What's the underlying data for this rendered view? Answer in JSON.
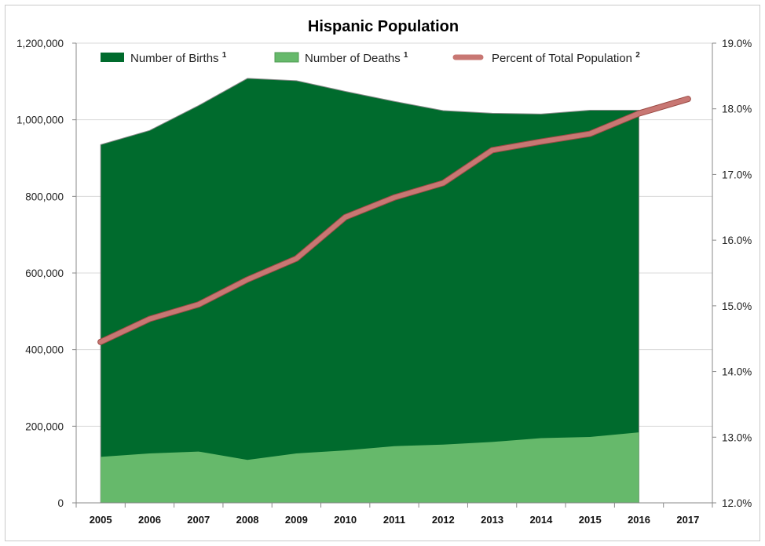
{
  "chart_data": {
    "type": "area",
    "title": "Hispanic Population",
    "categories": [
      "2005",
      "2006",
      "2007",
      "2008",
      "2009",
      "2010",
      "2011",
      "2012",
      "2013",
      "2014",
      "2015",
      "2016",
      "2017"
    ],
    "series": [
      {
        "name": "Number of Births",
        "superscript": "1",
        "type": "area",
        "axis": "left",
        "color": "#006b2d",
        "values": [
          935000,
          972000,
          1037000,
          1108000,
          1102000,
          1074000,
          1048000,
          1024000,
          1017000,
          1015000,
          1025000,
          1025000,
          null
        ]
      },
      {
        "name": "Number of Deaths",
        "superscript": "1",
        "type": "area",
        "axis": "left",
        "color": "#66b96b",
        "values": [
          120000,
          129000,
          134000,
          112000,
          129000,
          137000,
          148000,
          152000,
          159000,
          169000,
          172000,
          184000,
          null
        ]
      },
      {
        "name": "Percent of Total Population",
        "superscript": "2",
        "type": "line",
        "axis": "right",
        "color": "#c87773",
        "values": [
          14.45,
          14.8,
          15.02,
          15.4,
          15.72,
          16.35,
          16.65,
          16.87,
          17.37,
          17.5,
          17.62,
          17.93,
          18.15
        ]
      }
    ],
    "yleft": {
      "ylim": [
        0,
        1200000
      ],
      "ticks": [
        "0",
        "200,000",
        "400,000",
        "600,000",
        "800,000",
        "1,000,000",
        "1,200,000"
      ]
    },
    "yright": {
      "ylim": [
        12.0,
        19.0
      ],
      "ticks": [
        "12.0%",
        "13.0%",
        "14.0%",
        "15.0%",
        "16.0%",
        "17.0%",
        "18.0%",
        "19.0%"
      ]
    },
    "grid": true,
    "legend": "top"
  }
}
